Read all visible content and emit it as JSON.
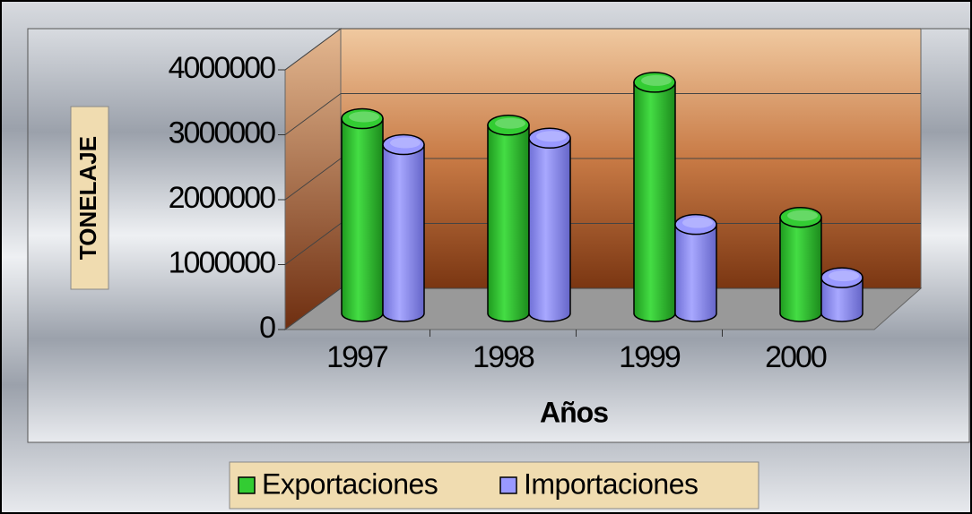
{
  "chart_data": {
    "type": "bar3d",
    "categories": [
      "1997",
      "1998",
      "1999",
      "2000"
    ],
    "series": [
      {
        "name": "Exportaciones",
        "color": "#33cc33",
        "values": [
          3000000,
          2900000,
          3560000,
          1480000
        ]
      },
      {
        "name": "Importaciones",
        "color": "#9999ff",
        "values": [
          2600000,
          2700000,
          1370000,
          550000
        ]
      }
    ],
    "ylim": [
      0,
      4000000
    ],
    "yticks": [
      0,
      1000000,
      2000000,
      3000000,
      4000000
    ],
    "y_label": "TONELAJE",
    "x_label": "Años",
    "grid": true
  }
}
